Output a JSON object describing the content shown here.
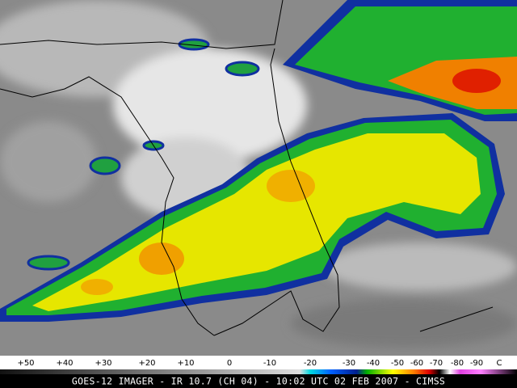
{
  "colorbar": {
    "labels": [
      "+50",
      "+40",
      "+30",
      "+20",
      "+10",
      "0",
      "-10",
      "-20",
      "-30",
      "-40",
      "-50",
      "-60",
      "-70",
      "-80",
      "-90"
    ],
    "unit": "C"
  },
  "caption": "GOES-12 IMAGER - IR 10.7 (CH 04) - 10:02 UTC 02 FEB 2007 - CIMSS"
}
